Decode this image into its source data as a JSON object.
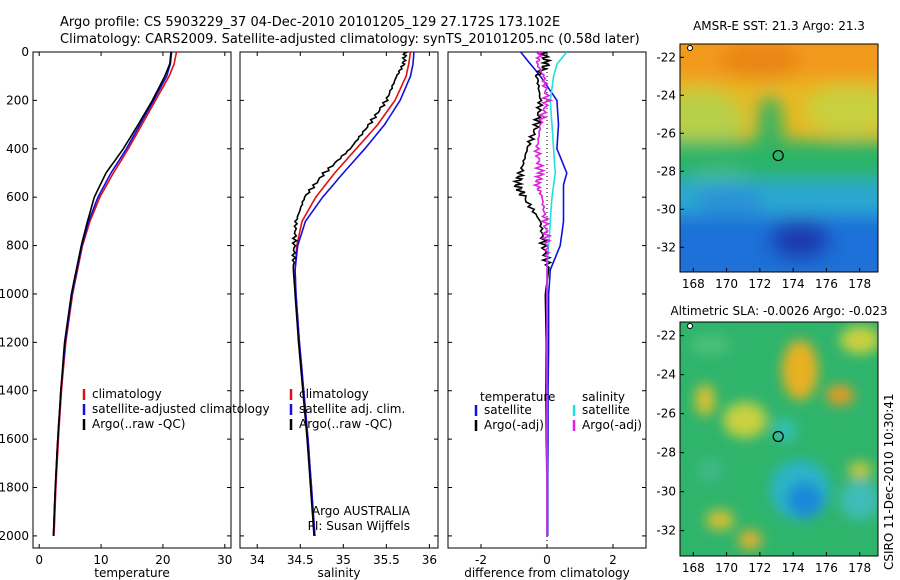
{
  "header": {
    "line1": "Argo profile: CS 5903229_37 04-Dec-2010 20101205_129 27.172S 173.102E",
    "line2": "Climatology: CARS2009. Satellite-adjusted climatology: synTS_20101205.nc (0.58d later)"
  },
  "side_label": "CSIRO 11-Dec-2010 10:30:41",
  "colors": {
    "red": "#e01010",
    "blue": "#1010e0",
    "black": "#000000",
    "cyan": "#20e0e0",
    "magenta": "#e020e0"
  },
  "chart_data": [
    {
      "type": "line",
      "name": "temperature",
      "xlabel": "temperature",
      "xlim": [
        -1,
        31
      ],
      "ylim": [
        2050,
        0
      ],
      "xticks": [
        0,
        10,
        20,
        30
      ],
      "yticks": [
        0,
        200,
        400,
        600,
        800,
        1000,
        1200,
        1400,
        1600,
        1800,
        2000
      ],
      "depth": [
        0,
        50,
        100,
        200,
        300,
        400,
        500,
        600,
        700,
        800,
        1000,
        1200,
        1400,
        1600,
        1800,
        2000
      ],
      "series": [
        {
          "name": "climatology",
          "color": "red",
          "values": [
            22.2,
            21.8,
            21.0,
            18.8,
            16.6,
            14.4,
            12.0,
            9.8,
            8.2,
            7.0,
            5.4,
            4.3,
            3.6,
            3.1,
            2.7,
            2.4
          ]
        },
        {
          "name": "satellite-adjusted climatology",
          "color": "blue",
          "values": [
            21.4,
            21.2,
            20.6,
            18.5,
            16.3,
            14.1,
            11.6,
            9.5,
            8.0,
            6.9,
            5.3,
            4.2,
            3.5,
            3.0,
            2.6,
            2.3
          ]
        },
        {
          "name": "Argo(..raw -QC)",
          "color": "black",
          "values": [
            21.3,
            21.1,
            20.3,
            18.3,
            16.0,
            13.6,
            10.8,
            8.9,
            7.8,
            6.8,
            5.2,
            4.1,
            3.5,
            3.0,
            2.6,
            2.3
          ]
        }
      ],
      "legend": [
        "climatology",
        "satellite-adjusted climatology",
        "Argo(..raw -QC)"
      ]
    },
    {
      "type": "line",
      "name": "salinity",
      "xlabel": "salinity",
      "xlim": [
        33.8,
        36.1
      ],
      "ylim": [
        2050,
        0
      ],
      "xticks": [
        34,
        34.5,
        35,
        35.5,
        36
      ],
      "xtick_labels": [
        "34",
        "34.5",
        "35",
        "35.5",
        "36"
      ],
      "depth": [
        0,
        50,
        100,
        200,
        300,
        400,
        500,
        600,
        700,
        800,
        900,
        1000,
        1200,
        1400,
        1600,
        1800,
        2000
      ],
      "series": [
        {
          "name": "climatology",
          "color": "red",
          "values": [
            35.78,
            35.76,
            35.73,
            35.6,
            35.4,
            35.15,
            34.9,
            34.68,
            34.52,
            34.46,
            34.44,
            34.45,
            34.49,
            34.54,
            34.59,
            34.63,
            34.67
          ]
        },
        {
          "name": "satellite adj. clim.",
          "color": "blue",
          "values": [
            35.82,
            35.81,
            35.78,
            35.66,
            35.48,
            35.25,
            35.0,
            34.76,
            34.56,
            34.47,
            34.44,
            34.45,
            34.49,
            34.54,
            34.59,
            34.63,
            34.67
          ]
        },
        {
          "name": "Argo(..raw -QC)",
          "color": "black",
          "values": [
            35.72,
            35.7,
            35.62,
            35.5,
            35.3,
            35.08,
            34.78,
            34.55,
            34.45,
            34.43,
            34.42,
            34.44,
            34.48,
            34.53,
            34.58,
            34.62,
            34.66
          ]
        }
      ],
      "legend": [
        "climatology",
        "satellite adj. clim.",
        "Argo(..raw -QC)"
      ],
      "annotation": [
        "Argo AUSTRALIA",
        "PI: Susan Wijffels"
      ]
    },
    {
      "type": "line",
      "name": "difference",
      "xlabel": "difference from climatology",
      "xlim": [
        -3,
        3
      ],
      "ylim": [
        2050,
        0
      ],
      "xticks": [
        -2,
        0,
        2
      ],
      "depth": [
        0,
        50,
        100,
        200,
        300,
        400,
        500,
        550,
        600,
        700,
        800,
        900,
        1000,
        1200,
        1400,
        1600,
        1800,
        2000
      ],
      "series": [
        {
          "name": "temperature satellite",
          "color": "blue",
          "values": [
            -0.8,
            -0.5,
            -0.2,
            0.3,
            0.35,
            0.3,
            0.6,
            0.5,
            0.5,
            0.5,
            0.4,
            0.1,
            0.05,
            0.05,
            0.03,
            0.03,
            0.02,
            0.02
          ]
        },
        {
          "name": "temperature Argo(-adj)",
          "color": "black",
          "values": [
            -0.1,
            0.0,
            -0.3,
            -0.2,
            -0.3,
            -0.6,
            -0.8,
            -0.9,
            -0.7,
            -0.2,
            -0.1,
            0.05,
            -0.05,
            -0.02,
            -0.03,
            -0.02,
            0.0,
            0.0
          ]
        },
        {
          "name": "salinity satellite",
          "color": "cyan",
          "values": [
            0.6,
            0.3,
            0.2,
            0.1,
            0.15,
            0.2,
            0.25,
            0.2,
            0.15,
            0.1,
            0.05,
            0.0,
            0.0,
            0.0,
            0.0,
            0.0,
            0.0,
            0.0
          ]
        },
        {
          "name": "salinity Argo(-adj)",
          "color": "magenta",
          "values": [
            -0.2,
            -0.3,
            -0.1,
            0.0,
            -0.2,
            -0.3,
            -0.2,
            -0.3,
            -0.15,
            -0.05,
            0.0,
            0.0,
            0.0,
            0.0,
            0.0,
            0.0,
            0.0,
            0.0
          ]
        }
      ],
      "legend_headers": [
        "temperature",
        "salinity"
      ],
      "legend": [
        "satellite",
        "Argo(-adj)",
        "satellite",
        "Argo(-adj)"
      ]
    },
    {
      "type": "heatmap",
      "name": "sst_map",
      "title": "AMSR-E SST: 21.3  Argo: 21.3",
      "xticks": [
        168,
        170,
        172,
        174,
        176,
        178
      ],
      "yticks": [
        -22,
        -24,
        -26,
        -28,
        -30,
        -32
      ],
      "xlim": [
        167.2,
        179.1
      ],
      "ylim": [
        -33.3,
        -21.3
      ],
      "marker": {
        "lon": 173.102,
        "lat": -27.172
      }
    },
    {
      "type": "heatmap",
      "name": "sla_map",
      "title": "Altimetric SLA: -0.0026  Argo: -0.023",
      "xticks": [
        168,
        170,
        172,
        174,
        176,
        178
      ],
      "yticks": [
        -22,
        -24,
        -26,
        -28,
        -30,
        -32
      ],
      "xlim": [
        167.2,
        179.1
      ],
      "ylim": [
        -33.3,
        -21.3
      ],
      "marker": {
        "lon": 173.102,
        "lat": -27.172
      }
    }
  ]
}
